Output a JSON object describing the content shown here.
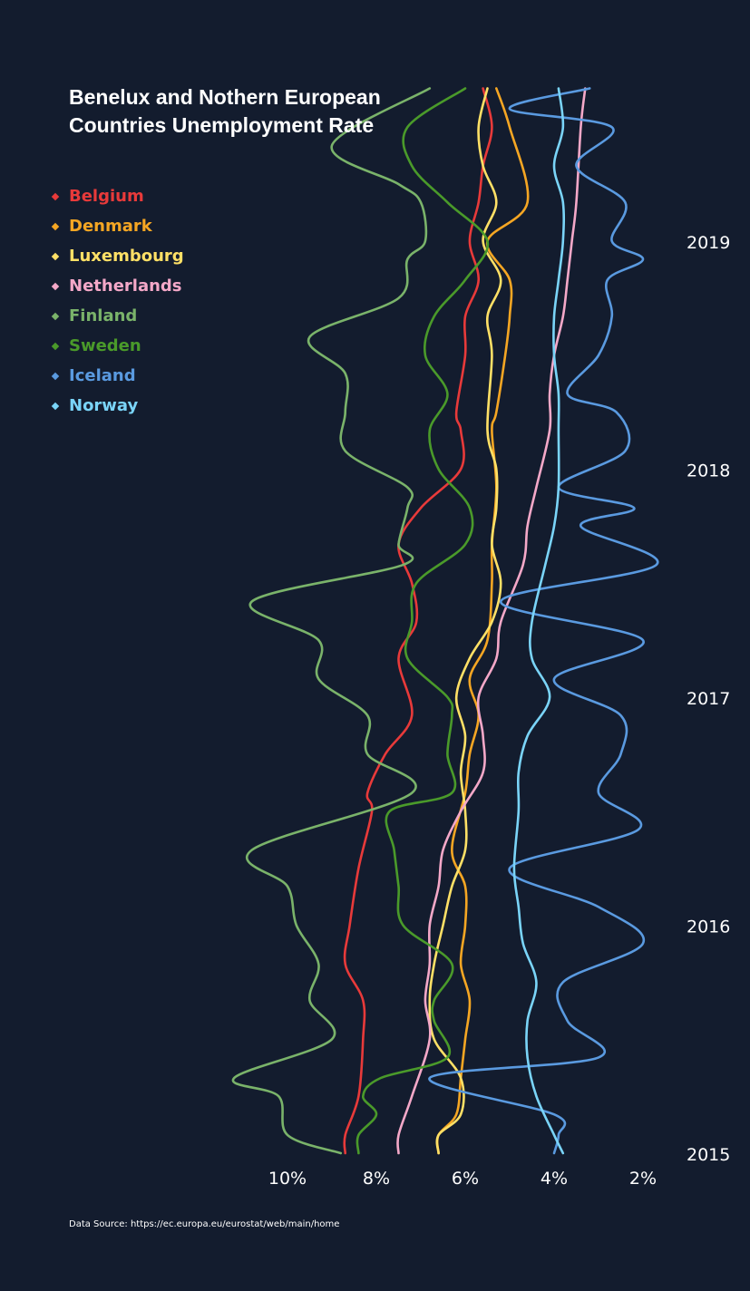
{
  "title_line1": "Benelux and Nothern European",
  "title_line2": "Countries Unemployment Rate",
  "source": "Data Source: https://ec.europa.eu/eurostat/web/main/home",
  "chart_data": {
    "type": "line",
    "orientation": "vertical-time",
    "x_axis": {
      "label": "",
      "ticks": [
        "10%",
        "8%",
        "6%",
        "4%",
        "2%"
      ],
      "tick_values": [
        10,
        8,
        6,
        4,
        2
      ],
      "reversed": true,
      "range": [
        11.2,
        1.7
      ]
    },
    "y_axis": {
      "label": "",
      "ticks": [
        "2015",
        "2016",
        "2017",
        "2018",
        "2019"
      ],
      "tick_values": [
        2015,
        2016,
        2017,
        2018,
        2019
      ],
      "range": [
        2015.0,
        2019.67
      ]
    },
    "legend_position": "top-left",
    "grid": false,
    "series": [
      {
        "name": "Belgium",
        "color": "#e83a3a",
        "points": [
          [
            2015.0,
            8.7
          ],
          [
            2015.08,
            8.7
          ],
          [
            2015.25,
            8.4
          ],
          [
            2015.5,
            8.3
          ],
          [
            2015.67,
            8.3
          ],
          [
            2015.83,
            8.7
          ],
          [
            2016.0,
            8.6
          ],
          [
            2016.25,
            8.4
          ],
          [
            2016.5,
            8.1
          ],
          [
            2016.58,
            8.2
          ],
          [
            2016.75,
            7.8
          ],
          [
            2016.92,
            7.2
          ],
          [
            2017.17,
            7.5
          ],
          [
            2017.33,
            7.1
          ],
          [
            2017.5,
            7.2
          ],
          [
            2017.67,
            7.5
          ],
          [
            2017.83,
            7.0
          ],
          [
            2018.0,
            6.1
          ],
          [
            2018.17,
            6.1
          ],
          [
            2018.25,
            6.2
          ],
          [
            2018.5,
            6.0
          ],
          [
            2018.67,
            6.0
          ],
          [
            2018.83,
            5.7
          ],
          [
            2019.0,
            5.9
          ],
          [
            2019.17,
            5.7
          ],
          [
            2019.33,
            5.6
          ],
          [
            2019.5,
            5.4
          ],
          [
            2019.67,
            5.6
          ]
        ]
      },
      {
        "name": "Denmark",
        "color": "#f5a623",
        "points": [
          [
            2015.0,
            6.6
          ],
          [
            2015.08,
            6.6
          ],
          [
            2015.17,
            6.2
          ],
          [
            2015.33,
            6.1
          ],
          [
            2015.5,
            6.0
          ],
          [
            2015.67,
            5.9
          ],
          [
            2015.83,
            6.1
          ],
          [
            2016.0,
            6.0
          ],
          [
            2016.17,
            6.0
          ],
          [
            2016.33,
            6.3
          ],
          [
            2016.58,
            6.0
          ],
          [
            2016.75,
            5.9
          ],
          [
            2016.92,
            5.7
          ],
          [
            2017.08,
            5.9
          ],
          [
            2017.25,
            5.5
          ],
          [
            2017.5,
            5.4
          ],
          [
            2017.67,
            5.4
          ],
          [
            2017.92,
            5.3
          ],
          [
            2018.17,
            5.4
          ],
          [
            2018.25,
            5.3
          ],
          [
            2018.5,
            5.1
          ],
          [
            2018.67,
            5.0
          ],
          [
            2018.83,
            5.0
          ],
          [
            2019.0,
            5.5
          ],
          [
            2019.17,
            4.6
          ],
          [
            2019.5,
            5.0
          ],
          [
            2019.67,
            5.3
          ]
        ]
      },
      {
        "name": "Luxembourg",
        "color": "#ffe066",
        "points": [
          [
            2015.0,
            6.6
          ],
          [
            2015.08,
            6.6
          ],
          [
            2015.17,
            6.1
          ],
          [
            2015.33,
            6.1
          ],
          [
            2015.5,
            6.7
          ],
          [
            2015.67,
            6.8
          ],
          [
            2015.83,
            6.7
          ],
          [
            2016.0,
            6.5
          ],
          [
            2016.17,
            6.3
          ],
          [
            2016.33,
            6.0
          ],
          [
            2016.5,
            6.0
          ],
          [
            2016.67,
            6.1
          ],
          [
            2016.83,
            6.0
          ],
          [
            2017.0,
            6.2
          ],
          [
            2017.17,
            5.9
          ],
          [
            2017.33,
            5.4
          ],
          [
            2017.5,
            5.2
          ],
          [
            2017.67,
            5.4
          ],
          [
            2017.83,
            5.3
          ],
          [
            2018.0,
            5.3
          ],
          [
            2018.17,
            5.5
          ],
          [
            2018.5,
            5.4
          ],
          [
            2018.67,
            5.5
          ],
          [
            2018.83,
            5.2
          ],
          [
            2019.0,
            5.6
          ],
          [
            2019.17,
            5.3
          ],
          [
            2019.33,
            5.6
          ],
          [
            2019.5,
            5.7
          ],
          [
            2019.67,
            5.5
          ]
        ]
      },
      {
        "name": "Netherlands",
        "color": "#f4a8c8",
        "points": [
          [
            2015.0,
            7.5
          ],
          [
            2015.08,
            7.5
          ],
          [
            2015.25,
            7.2
          ],
          [
            2015.5,
            6.8
          ],
          [
            2015.67,
            6.9
          ],
          [
            2015.83,
            6.8
          ],
          [
            2016.0,
            6.8
          ],
          [
            2016.17,
            6.6
          ],
          [
            2016.33,
            6.5
          ],
          [
            2016.5,
            6.1
          ],
          [
            2016.67,
            5.6
          ],
          [
            2016.83,
            5.6
          ],
          [
            2017.0,
            5.7
          ],
          [
            2017.17,
            5.3
          ],
          [
            2017.33,
            5.2
          ],
          [
            2017.58,
            4.7
          ],
          [
            2017.75,
            4.6
          ],
          [
            2017.92,
            4.4
          ],
          [
            2018.17,
            4.1
          ],
          [
            2018.33,
            4.1
          ],
          [
            2018.5,
            4.0
          ],
          [
            2018.67,
            3.8
          ],
          [
            2018.83,
            3.7
          ],
          [
            2019.0,
            3.6
          ],
          [
            2019.17,
            3.5
          ],
          [
            2019.5,
            3.4
          ],
          [
            2019.67,
            3.3
          ]
        ]
      },
      {
        "name": "Finland",
        "color": "#7ab36a",
        "points": [
          [
            2015.0,
            8.8
          ],
          [
            2015.08,
            10.0
          ],
          [
            2015.25,
            10.2
          ],
          [
            2015.33,
            11.2
          ],
          [
            2015.5,
            9.0
          ],
          [
            2015.67,
            9.5
          ],
          [
            2015.83,
            9.3
          ],
          [
            2016.0,
            9.8
          ],
          [
            2016.17,
            10.0
          ],
          [
            2016.33,
            10.8
          ],
          [
            2016.58,
            7.2
          ],
          [
            2016.75,
            8.2
          ],
          [
            2016.92,
            8.2
          ],
          [
            2017.08,
            9.3
          ],
          [
            2017.25,
            9.3
          ],
          [
            2017.42,
            10.8
          ],
          [
            2017.58,
            7.4
          ],
          [
            2017.67,
            7.5
          ],
          [
            2017.83,
            7.3
          ],
          [
            2017.92,
            7.3
          ],
          [
            2018.08,
            8.7
          ],
          [
            2018.25,
            8.7
          ],
          [
            2018.42,
            8.7
          ],
          [
            2018.58,
            9.5
          ],
          [
            2018.75,
            7.5
          ],
          [
            2018.92,
            7.3
          ],
          [
            2019.0,
            6.9
          ],
          [
            2019.17,
            7.0
          ],
          [
            2019.25,
            7.5
          ],
          [
            2019.42,
            9.0
          ],
          [
            2019.67,
            6.8
          ]
        ]
      },
      {
        "name": "Sweden",
        "color": "#4a9a2a",
        "points": [
          [
            2015.0,
            8.4
          ],
          [
            2015.08,
            8.4
          ],
          [
            2015.17,
            8.0
          ],
          [
            2015.25,
            8.3
          ],
          [
            2015.33,
            7.9
          ],
          [
            2015.42,
            6.4
          ],
          [
            2015.58,
            6.7
          ],
          [
            2015.67,
            6.7
          ],
          [
            2015.83,
            6.3
          ],
          [
            2016.0,
            7.4
          ],
          [
            2016.17,
            7.5
          ],
          [
            2016.33,
            7.6
          ],
          [
            2016.5,
            7.7
          ],
          [
            2016.58,
            6.3
          ],
          [
            2016.75,
            6.4
          ],
          [
            2016.92,
            6.3
          ],
          [
            2017.0,
            6.4
          ],
          [
            2017.17,
            7.3
          ],
          [
            2017.33,
            7.2
          ],
          [
            2017.5,
            7.1
          ],
          [
            2017.67,
            6.0
          ],
          [
            2017.83,
            5.9
          ],
          [
            2018.0,
            6.6
          ],
          [
            2018.17,
            6.8
          ],
          [
            2018.33,
            6.4
          ],
          [
            2018.5,
            6.9
          ],
          [
            2018.67,
            6.7
          ],
          [
            2018.83,
            6.0
          ],
          [
            2019.0,
            5.5
          ],
          [
            2019.17,
            6.4
          ],
          [
            2019.33,
            7.2
          ],
          [
            2019.5,
            7.3
          ],
          [
            2019.67,
            6.0
          ]
        ]
      },
      {
        "name": "Iceland",
        "color": "#5a9ae0",
        "points": [
          [
            2015.0,
            4.0
          ],
          [
            2015.08,
            3.9
          ],
          [
            2015.17,
            4.0
          ],
          [
            2015.33,
            6.8
          ],
          [
            2015.42,
            3.0
          ],
          [
            2015.58,
            3.7
          ],
          [
            2015.75,
            3.8
          ],
          [
            2015.92,
            2.0
          ],
          [
            2016.08,
            3.0
          ],
          [
            2016.25,
            5.0
          ],
          [
            2016.42,
            2.1
          ],
          [
            2016.58,
            3.0
          ],
          [
            2016.75,
            2.5
          ],
          [
            2016.92,
            2.5
          ],
          [
            2017.08,
            4.0
          ],
          [
            2017.25,
            2.0
          ],
          [
            2017.42,
            5.2
          ],
          [
            2017.58,
            1.7
          ],
          [
            2017.75,
            3.4
          ],
          [
            2017.83,
            2.2
          ],
          [
            2017.92,
            3.9
          ],
          [
            2018.08,
            2.4
          ],
          [
            2018.25,
            2.6
          ],
          [
            2018.33,
            3.7
          ],
          [
            2018.5,
            3.0
          ],
          [
            2018.67,
            2.7
          ],
          [
            2018.83,
            2.8
          ],
          [
            2018.92,
            2.0
          ],
          [
            2019.0,
            2.7
          ],
          [
            2019.17,
            2.4
          ],
          [
            2019.33,
            3.5
          ],
          [
            2019.5,
            2.7
          ],
          [
            2019.58,
            5.0
          ],
          [
            2019.67,
            3.2
          ]
        ]
      },
      {
        "name": "Norway",
        "color": "#7ad4f8",
        "points": [
          [
            2015.0,
            3.8
          ],
          [
            2015.08,
            4.0
          ],
          [
            2015.25,
            4.4
          ],
          [
            2015.42,
            4.6
          ],
          [
            2015.58,
            4.6
          ],
          [
            2015.75,
            4.4
          ],
          [
            2015.92,
            4.7
          ],
          [
            2016.08,
            4.8
          ],
          [
            2016.25,
            4.9
          ],
          [
            2016.5,
            4.8
          ],
          [
            2016.67,
            4.8
          ],
          [
            2016.83,
            4.6
          ],
          [
            2017.0,
            4.1
          ],
          [
            2017.17,
            4.5
          ],
          [
            2017.33,
            4.5
          ],
          [
            2017.58,
            4.2
          ],
          [
            2017.75,
            4.0
          ],
          [
            2017.92,
            3.9
          ],
          [
            2018.17,
            3.9
          ],
          [
            2018.33,
            3.9
          ],
          [
            2018.5,
            4.0
          ],
          [
            2018.67,
            4.0
          ],
          [
            2018.83,
            3.9
          ],
          [
            2019.0,
            3.8
          ],
          [
            2019.17,
            3.8
          ],
          [
            2019.33,
            4.0
          ],
          [
            2019.5,
            3.8
          ],
          [
            2019.67,
            3.9
          ]
        ]
      }
    ]
  }
}
